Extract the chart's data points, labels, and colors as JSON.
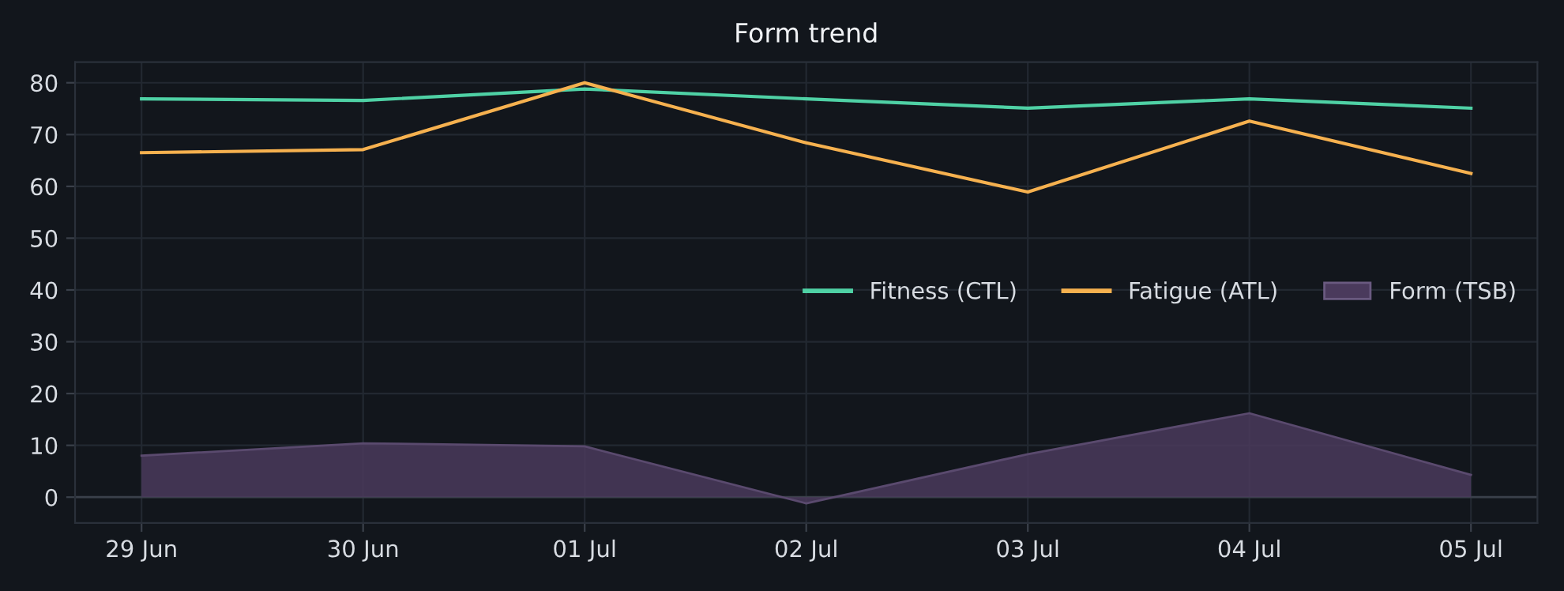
{
  "chart_data": {
    "type": "line",
    "title": "Form trend",
    "categories": [
      "29 Jun",
      "30 Jun",
      "01 Jul",
      "02 Jul",
      "03 Jul",
      "04 Jul",
      "05 Jul"
    ],
    "series": [
      {
        "name": "Fitness (CTL)",
        "color": "#4fd1a5",
        "values": [
          76.9,
          76.6,
          78.8,
          76.9,
          75.1,
          76.9,
          75.1
        ]
      },
      {
        "name": "Fatigue (ATL)",
        "color": "#f6b14f",
        "values": [
          66.5,
          67.1,
          80,
          68.4,
          58.9,
          72.6,
          62.5
        ]
      },
      {
        "name": "Form (TSB)",
        "type": "area",
        "color": "#4a3a5c",
        "values": [
          8.0,
          10.4,
          9.8,
          -1.2,
          8.3,
          16.2,
          4.3
        ]
      }
    ],
    "ylim": [
      -5,
      84
    ],
    "yticks": [
      0,
      10,
      20,
      30,
      40,
      50,
      60,
      70,
      80
    ],
    "grid": true,
    "legend": "center right"
  }
}
